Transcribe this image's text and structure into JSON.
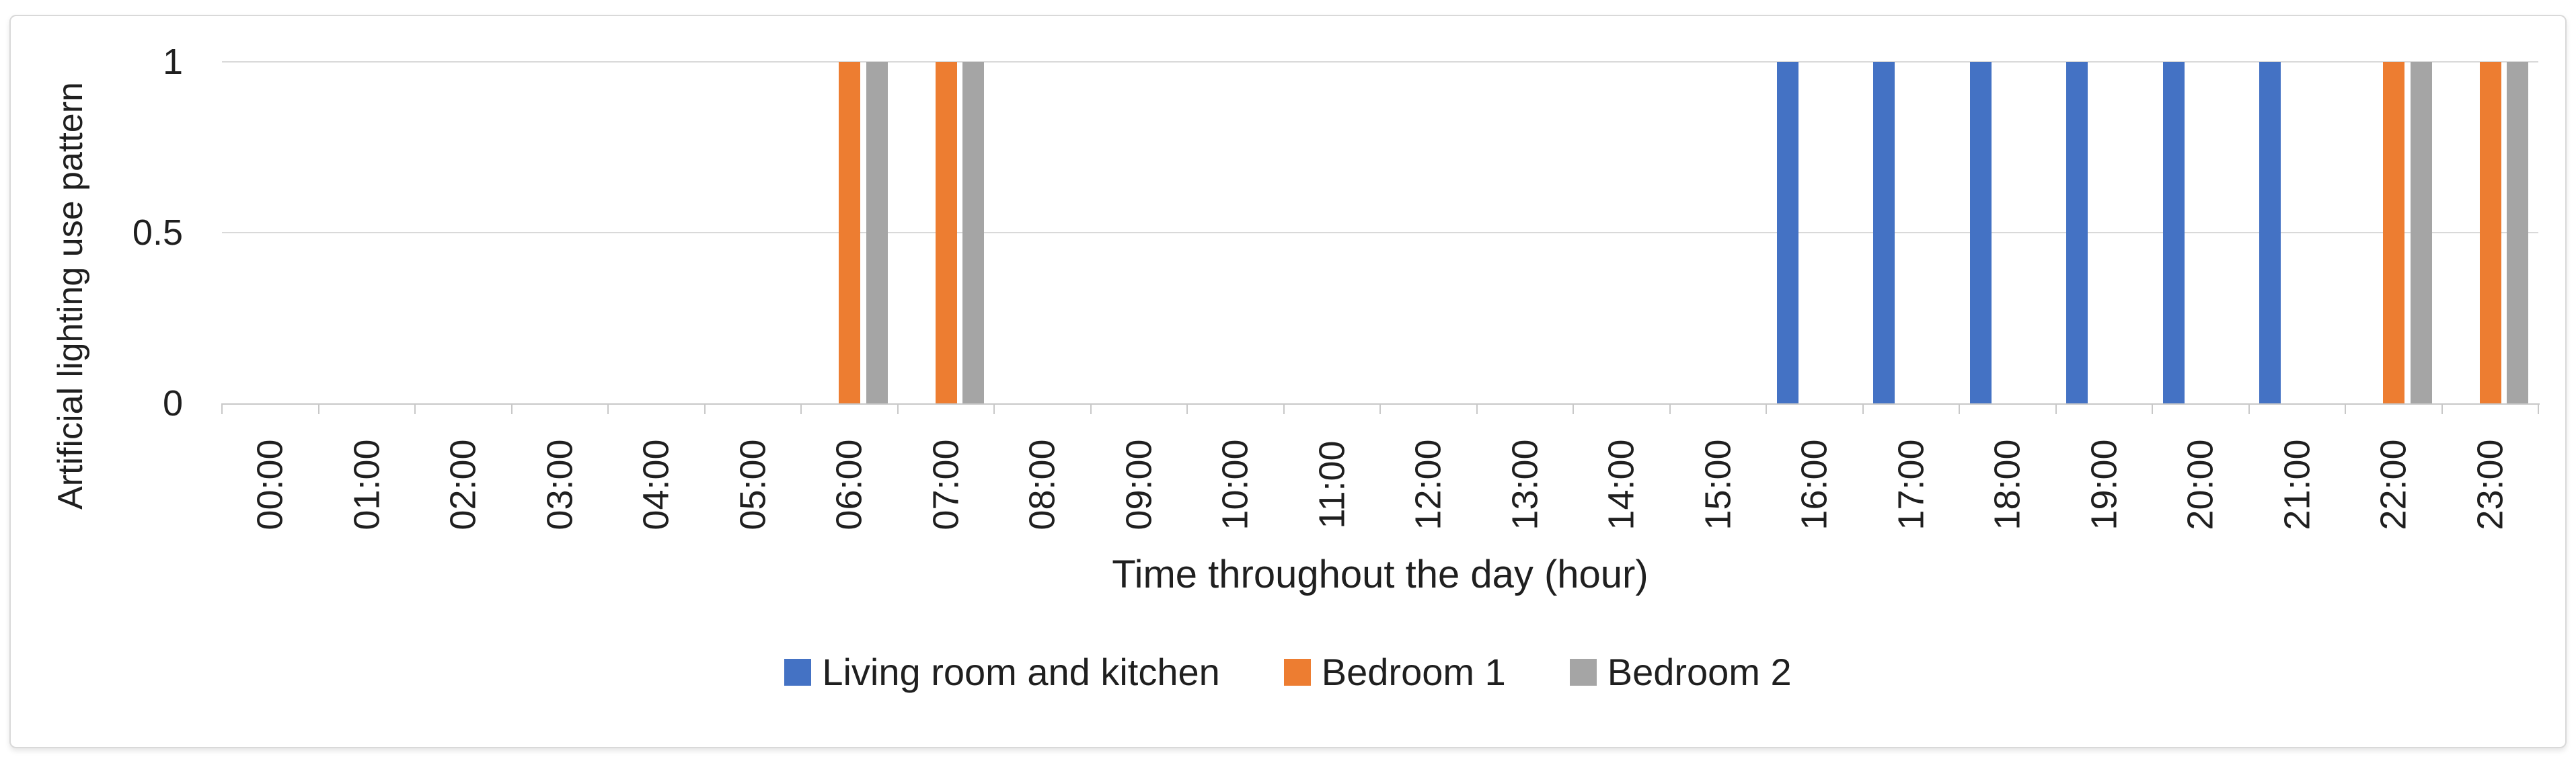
{
  "chart_data": {
    "type": "bar",
    "title": "",
    "xlabel": "Time throughout the day (hour)",
    "ylabel": "Artificial lighting use pattern",
    "categories": [
      "00:00",
      "01:00",
      "02:00",
      "03:00",
      "04:00",
      "05:00",
      "06:00",
      "07:00",
      "08:00",
      "09:00",
      "10:00",
      "11:00",
      "12:00",
      "13:00",
      "14:00",
      "15:00",
      "16:00",
      "17:00",
      "18:00",
      "19:00",
      "20:00",
      "21:00",
      "22:00",
      "23:00"
    ],
    "series": [
      {
        "name": "Living room and kitchen",
        "color": "#4472C4",
        "values": [
          0,
          0,
          0,
          0,
          0,
          0,
          0,
          0,
          0,
          0,
          0,
          0,
          0,
          0,
          0,
          0,
          1,
          1,
          1,
          1,
          1,
          1,
          0,
          0
        ]
      },
      {
        "name": "Bedroom 1",
        "color": "#ED7D31",
        "values": [
          0,
          0,
          0,
          0,
          0,
          0,
          1,
          1,
          0,
          0,
          0,
          0,
          0,
          0,
          0,
          0,
          0,
          0,
          0,
          0,
          0,
          0,
          1,
          1
        ]
      },
      {
        "name": "Bedroom 2",
        "color": "#A5A5A5",
        "values": [
          0,
          0,
          0,
          0,
          0,
          0,
          1,
          1,
          0,
          0,
          0,
          0,
          0,
          0,
          0,
          0,
          0,
          0,
          0,
          0,
          0,
          0,
          1,
          1
        ]
      }
    ],
    "ylim": [
      0,
      1
    ],
    "y_ticks": [
      1,
      0.5,
      0
    ],
    "y_tick_labels": [
      "1",
      "0.5",
      "0"
    ],
    "grid": "horizontal gridlines at 0.5 and 1",
    "legend_position": "bottom-center"
  },
  "colors": {
    "gridline": "#d9d9d9",
    "axis_line": "#c8c8c8",
    "tick_mark": "#c8c8c8",
    "text": "#1f1f1f",
    "card_border": "#d9d9d9",
    "background": "#ffffff"
  }
}
